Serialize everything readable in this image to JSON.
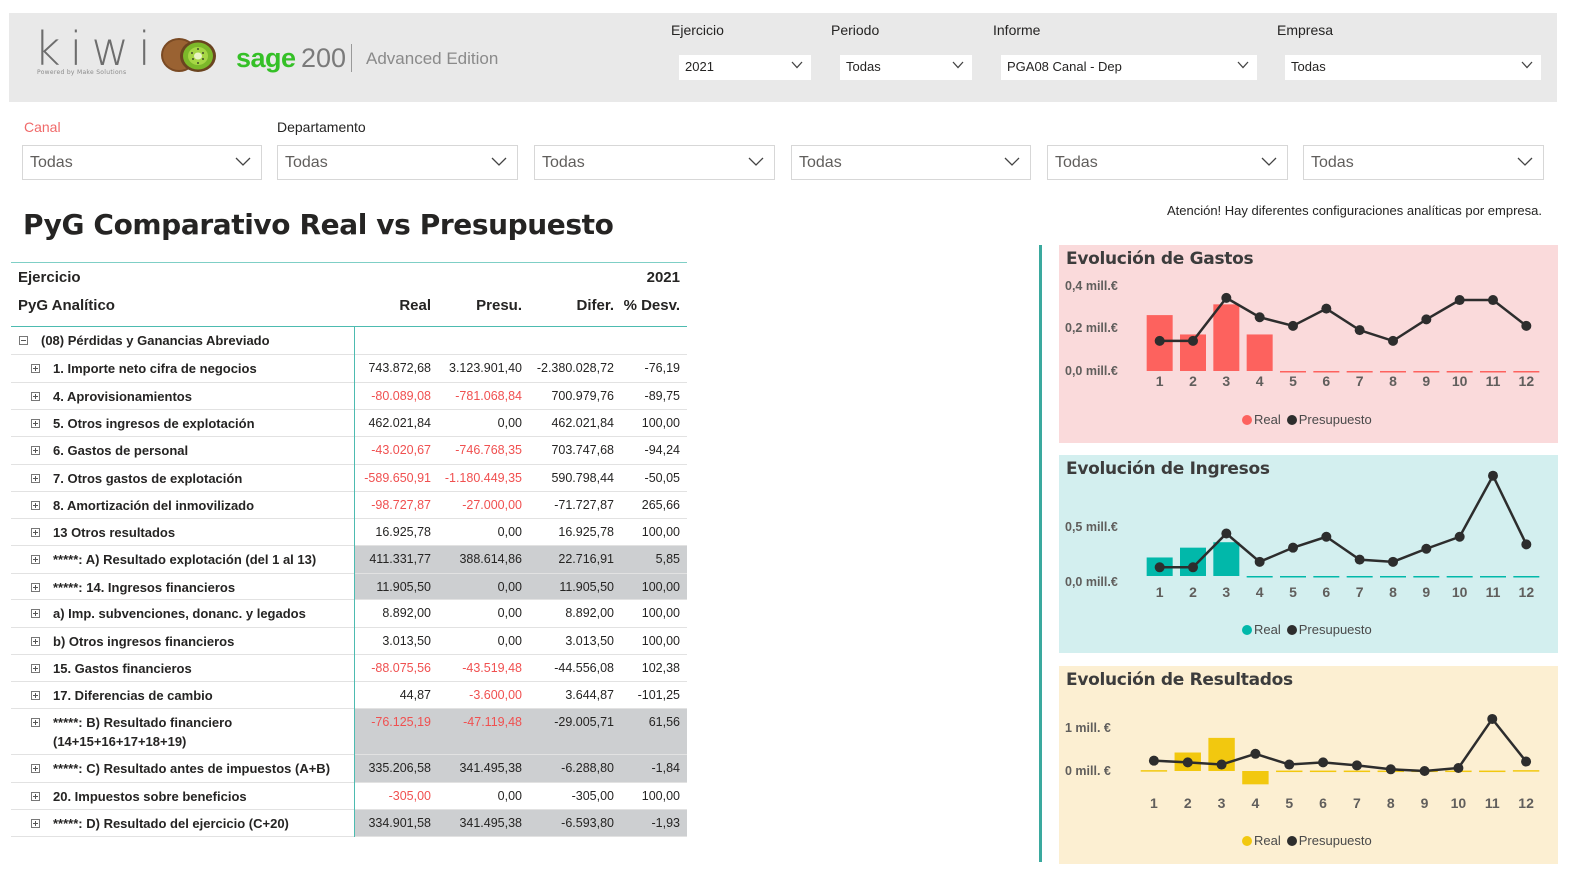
{
  "header": {
    "logo_text": "kiwi",
    "logo_sub": "Powered by Make Solutions",
    "brand": "sage",
    "brand_version": "200",
    "brand_edition": "Advanced Edition",
    "filters": [
      {
        "label": "Ejercicio",
        "value": "2021"
      },
      {
        "label": "Periodo",
        "value": "Todas"
      },
      {
        "label": "Informe",
        "value": "PGA08 Canal - Dep"
      },
      {
        "label": "Empresa",
        "value": "Todas"
      }
    ]
  },
  "slicers": [
    {
      "label": "Canal",
      "value": "Todas"
    },
    {
      "label": "Departamento",
      "value": "Todas"
    },
    {
      "label": "",
      "value": "Todas"
    },
    {
      "label": "",
      "value": "Todas"
    },
    {
      "label": "",
      "value": "Todas"
    },
    {
      "label": "",
      "value": "Todas"
    }
  ],
  "title": "PyG Comparativo Real vs Presupuesto",
  "warning": "Atención! Hay diferentes configuraciones analíticas por empresa.",
  "matrix": {
    "row_header_1": "Ejercicio",
    "year": "2021",
    "row_header_2": "PyG Analítico",
    "columns": [
      "Real",
      "Presu.",
      "Difer.",
      "% Desv."
    ],
    "rows": [
      {
        "label": "(08) Pérdidas y Ganancias Abreviado",
        "values": [
          "",
          "",
          "",
          ""
        ],
        "neg": [
          false,
          false,
          false,
          false
        ],
        "shade": false,
        "expanded": true
      },
      {
        "label": "1. Importe neto cifra de negocios",
        "values": [
          "743.872,68",
          "3.123.901,40",
          "-2.380.028,72",
          "-76,19"
        ],
        "neg": [
          false,
          false,
          false,
          false
        ],
        "shade": false
      },
      {
        "label": "4. Aprovisionamientos",
        "values": [
          "-80.089,08",
          "-781.068,84",
          "700.979,76",
          "-89,75"
        ],
        "neg": [
          true,
          true,
          false,
          false
        ],
        "shade": false
      },
      {
        "label": "5. Otros ingresos de explotación",
        "values": [
          "462.021,84",
          "0,00",
          "462.021,84",
          "100,00"
        ],
        "neg": [
          false,
          false,
          false,
          false
        ],
        "shade": false
      },
      {
        "label": "6. Gastos de personal",
        "values": [
          "-43.020,67",
          "-746.768,35",
          "703.747,68",
          "-94,24"
        ],
        "neg": [
          true,
          true,
          false,
          false
        ],
        "shade": false
      },
      {
        "label": "7. Otros gastos de explotación",
        "values": [
          "-589.650,91",
          "-1.180.449,35",
          "590.798,44",
          "-50,05"
        ],
        "neg": [
          true,
          true,
          false,
          false
        ],
        "shade": false
      },
      {
        "label": "8. Amortización del inmovilizado",
        "values": [
          "-98.727,87",
          "-27.000,00",
          "-71.727,87",
          "265,66"
        ],
        "neg": [
          true,
          true,
          false,
          false
        ],
        "shade": false
      },
      {
        "label": "13 Otros resultados",
        "values": [
          "16.925,78",
          "0,00",
          "16.925,78",
          "100,00"
        ],
        "neg": [
          false,
          false,
          false,
          false
        ],
        "shade": false
      },
      {
        "label": "*****: A) Resultado explotación (del 1 al 13)",
        "values": [
          "411.331,77",
          "388.614,86",
          "22.716,91",
          "5,85"
        ],
        "neg": [
          false,
          false,
          false,
          false
        ],
        "shade": true
      },
      {
        "label": "*****: 14. Ingresos financieros",
        "values": [
          "11.905,50",
          "0,00",
          "11.905,50",
          "100,00"
        ],
        "neg": [
          false,
          false,
          false,
          false
        ],
        "shade": true
      },
      {
        "label": "a) Imp. subvenciones, donanc. y legados",
        "values": [
          "8.892,00",
          "0,00",
          "8.892,00",
          "100,00"
        ],
        "neg": [
          false,
          false,
          false,
          false
        ],
        "shade": false
      },
      {
        "label": "b) Otros ingresos financieros",
        "values": [
          "3.013,50",
          "0,00",
          "3.013,50",
          "100,00"
        ],
        "neg": [
          false,
          false,
          false,
          false
        ],
        "shade": false
      },
      {
        "label": "15. Gastos financieros",
        "values": [
          "-88.075,56",
          "-43.519,48",
          "-44.556,08",
          "102,38"
        ],
        "neg": [
          true,
          true,
          false,
          false
        ],
        "shade": false
      },
      {
        "label": "17. Diferencias de cambio",
        "values": [
          "44,87",
          "-3.600,00",
          "3.644,87",
          "-101,25"
        ],
        "neg": [
          false,
          true,
          false,
          false
        ],
        "shade": false
      },
      {
        "label": "*****: B) Resultado financiero",
        "label2": "(14+15+16+17+18+19)",
        "values": [
          "-76.125,19",
          "-47.119,48",
          "-29.005,71",
          "61,56"
        ],
        "neg": [
          true,
          true,
          false,
          false
        ],
        "shade": true
      },
      {
        "label": "*****: C) Resultado antes de impuestos (A+B)",
        "values": [
          "335.206,58",
          "341.495,38",
          "-6.288,80",
          "-1,84"
        ],
        "neg": [
          false,
          false,
          false,
          false
        ],
        "shade": true
      },
      {
        "label": "20. Impuestos sobre beneficios",
        "values": [
          "-305,00",
          "0,00",
          "-305,00",
          "100,00"
        ],
        "neg": [
          true,
          false,
          false,
          false
        ],
        "shade": false
      },
      {
        "label": "*****: D) Resultado del ejercicio (C+20)",
        "values": [
          "334.901,58",
          "341.495,38",
          "-6.593,80",
          "-1,93"
        ],
        "neg": [
          false,
          false,
          false,
          false
        ],
        "shade": true
      }
    ]
  },
  "chart_data": [
    {
      "type": "bar",
      "title": "Evolución de Gastos",
      "categories": [
        "1",
        "2",
        "3",
        "4",
        "5",
        "6",
        "7",
        "8",
        "9",
        "10",
        "11",
        "12"
      ],
      "y_ticks": [
        "0,4 mill.€",
        "0,2 mill.€",
        "0,0 mill.€"
      ],
      "y_tick_values": [
        0.4,
        0.2,
        0.0
      ],
      "ylim": [
        0,
        0.4
      ],
      "series": [
        {
          "name": "Real",
          "kind": "bar",
          "color": "#fd625e",
          "values": [
            0.26,
            0.17,
            0.31,
            0.17,
            0,
            0,
            0,
            0,
            0,
            0,
            0,
            0
          ]
        },
        {
          "name": "Presupuesto",
          "kind": "line",
          "color": "#2d2d2d",
          "values": [
            0.14,
            0.14,
            0.34,
            0.25,
            0.21,
            0.29,
            0.19,
            0.14,
            0.24,
            0.33,
            0.33,
            0.21
          ]
        }
      ],
      "background": "#fadadb"
    },
    {
      "type": "bar",
      "title": "Evolución de Ingresos",
      "categories": [
        "1",
        "2",
        "3",
        "4",
        "5",
        "6",
        "7",
        "8",
        "9",
        "10",
        "11",
        "12"
      ],
      "y_ticks": [
        "0,5 mill.€",
        "0,0 mill.€"
      ],
      "y_tick_values": [
        0.5,
        0.0
      ],
      "ylim": [
        -0.1,
        1.0
      ],
      "series": [
        {
          "name": "Real",
          "kind": "bar",
          "color": "#01b8aa",
          "values": [
            0.17,
            0.26,
            0.31,
            0,
            0,
            0,
            0,
            0,
            0,
            0,
            0,
            0
          ]
        },
        {
          "name": "Presupuesto",
          "kind": "line",
          "color": "#2d2d2d",
          "values": [
            0.08,
            0.08,
            0.39,
            0.13,
            0.26,
            0.36,
            0.15,
            0.13,
            0.25,
            0.36,
            0.92,
            0.29
          ]
        }
      ],
      "background": "#d3efef"
    },
    {
      "type": "bar",
      "title": "Evolución de Resultados",
      "categories": [
        "1",
        "2",
        "3",
        "4",
        "5",
        "6",
        "7",
        "8",
        "9",
        "10",
        "11",
        "12"
      ],
      "y_ticks": [
        "1 mill. €",
        "0 mill. €"
      ],
      "y_tick_values": [
        1,
        0
      ],
      "ylim": [
        -0.35,
        1.35
      ],
      "series": [
        {
          "name": "Real",
          "kind": "bar",
          "color": "#f2c80f",
          "values": [
            0.02,
            0.43,
            0.77,
            -0.31,
            0.01,
            0.01,
            0.01,
            0.01,
            0.01,
            0.01,
            0.01,
            0.02
          ]
        },
        {
          "name": "Presupuesto",
          "kind": "line",
          "color": "#2d2d2d",
          "values": [
            0.24,
            0.2,
            0.15,
            0.4,
            0.15,
            0.2,
            0.13,
            0.04,
            0.0,
            0.07,
            1.21,
            0.22
          ]
        }
      ],
      "background": "#fcefd2"
    }
  ]
}
